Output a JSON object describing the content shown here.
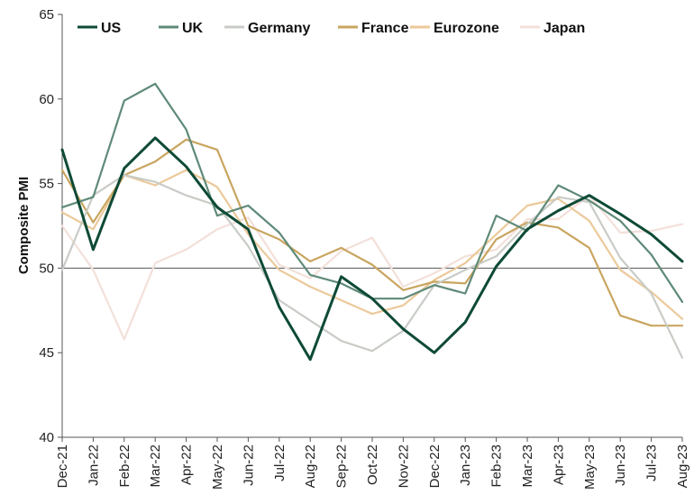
{
  "chart_data": {
    "type": "line",
    "ylabel": "Composite PMI",
    "xlabel": "",
    "ylim": [
      40,
      65
    ],
    "yticks": [
      40,
      45,
      50,
      55,
      60,
      65
    ],
    "reference_line": 50,
    "grid": false,
    "legend_position": "top",
    "categories": [
      "Dec-21",
      "Jan-22",
      "Feb-22",
      "Mar-22",
      "Apr-22",
      "May-22",
      "Jun-22",
      "Jul-22",
      "Aug-22",
      "Sep-22",
      "Oct-22",
      "Nov-22",
      "Dec-22",
      "Jan-23",
      "Feb-23",
      "Mar-23",
      "Apr-23",
      "May-23",
      "Jun-23",
      "Jul-23",
      "Aug-23"
    ],
    "series": [
      {
        "name": "US",
        "color": "#0e4a36",
        "width": 3,
        "values": [
          57.0,
          51.1,
          55.9,
          57.7,
          56.0,
          53.6,
          52.3,
          47.7,
          44.6,
          49.5,
          48.2,
          46.4,
          45.0,
          46.8,
          50.1,
          52.3,
          53.4,
          54.3,
          53.2,
          52.0,
          50.4
        ]
      },
      {
        "name": "UK",
        "color": "#5f8a78",
        "width": 2.2,
        "values": [
          53.6,
          54.2,
          59.9,
          60.9,
          58.2,
          53.1,
          53.7,
          52.1,
          49.6,
          49.1,
          48.2,
          48.2,
          49.0,
          48.5,
          53.1,
          52.2,
          54.9,
          54.0,
          52.8,
          50.8,
          48.0
        ]
      },
      {
        "name": "Germany",
        "color": "#c8ccc6",
        "width": 2.2,
        "values": [
          49.9,
          54.3,
          55.5,
          55.1,
          54.3,
          53.7,
          51.3,
          48.1,
          46.9,
          45.7,
          45.1,
          46.3,
          49.0,
          49.9,
          50.7,
          52.6,
          54.2,
          53.9,
          50.6,
          48.5,
          44.7
        ]
      },
      {
        "name": "France",
        "color": "#c9a55f",
        "width": 2.2,
        "values": [
          55.8,
          52.7,
          55.5,
          56.3,
          57.6,
          57.0,
          52.5,
          51.7,
          50.4,
          51.2,
          50.2,
          48.7,
          49.2,
          49.1,
          51.7,
          52.7,
          52.4,
          51.2,
          47.2,
          46.6,
          46.6
        ]
      },
      {
        "name": "Eurozone",
        "color": "#ecc99a",
        "width": 2.2,
        "values": [
          53.3,
          52.3,
          55.5,
          54.9,
          55.8,
          54.8,
          52.0,
          49.9,
          48.9,
          48.1,
          47.3,
          47.8,
          49.3,
          50.3,
          52.0,
          53.7,
          54.1,
          52.8,
          49.9,
          48.6,
          47.0
        ]
      },
      {
        "name": "Japan",
        "color": "#f3e0da",
        "width": 2.2,
        "values": [
          52.5,
          49.9,
          45.8,
          50.3,
          51.1,
          52.3,
          53.0,
          50.2,
          49.4,
          51.0,
          51.8,
          48.9,
          49.7,
          50.7,
          51.1,
          52.9,
          52.9,
          54.3,
          52.1,
          52.2,
          52.6
        ]
      }
    ]
  }
}
